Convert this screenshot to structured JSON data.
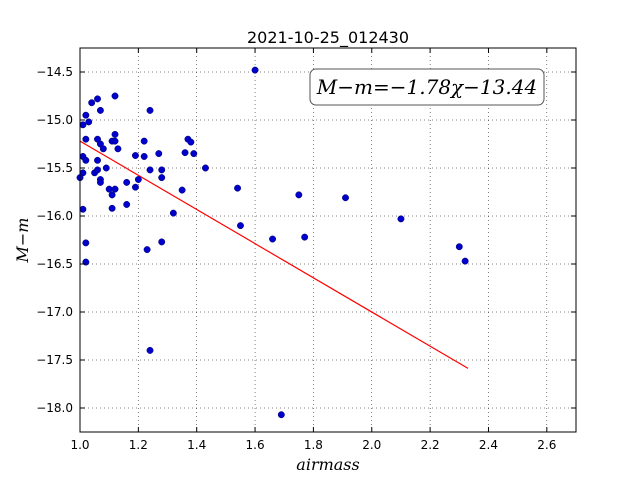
{
  "chart_data": {
    "type": "scatter",
    "title": "2021-10-25_012430",
    "xlabel": "airmass",
    "ylabel": "M−m",
    "xlim": [
      1.0,
      2.7
    ],
    "ylim": [
      -18.25,
      -14.25
    ],
    "x_ticks": [
      1.0,
      1.2,
      1.4,
      1.6,
      1.8,
      2.0,
      2.2,
      2.4,
      2.6
    ],
    "x_tick_labels": [
      "1.0",
      "1.2",
      "1.4",
      "1.6",
      "1.8",
      "2.0",
      "2.2",
      "2.4",
      "2.6"
    ],
    "y_ticks": [
      -14.5,
      -15.0,
      -15.5,
      -16.0,
      -16.5,
      -17.0,
      -17.5,
      -18.0
    ],
    "y_tick_labels": [
      "−14.5",
      "−15.0",
      "−15.5",
      "−16.0",
      "−16.5",
      "−17.0",
      "−17.5",
      "−18.0"
    ],
    "grid": true,
    "annotation": "M−m=−1.78χ−13.44",
    "fit": {
      "slope": -1.78,
      "intercept": -13.44,
      "x_range": [
        1.0,
        2.33
      ],
      "color": "#ff0000"
    },
    "point_color": "#0000cc",
    "points": [
      {
        "x": 1.0,
        "y": -15.6
      },
      {
        "x": 1.01,
        "y": -15.05
      },
      {
        "x": 1.01,
        "y": -15.38
      },
      {
        "x": 1.01,
        "y": -15.55
      },
      {
        "x": 1.01,
        "y": -15.93
      },
      {
        "x": 1.02,
        "y": -16.28
      },
      {
        "x": 1.02,
        "y": -16.48
      },
      {
        "x": 1.02,
        "y": -15.2
      },
      {
        "x": 1.02,
        "y": -15.42
      },
      {
        "x": 1.02,
        "y": -14.95
      },
      {
        "x": 1.03,
        "y": -15.02
      },
      {
        "x": 1.04,
        "y": -14.82
      },
      {
        "x": 1.05,
        "y": -15.55
      },
      {
        "x": 1.06,
        "y": -14.78
      },
      {
        "x": 1.06,
        "y": -15.2
      },
      {
        "x": 1.06,
        "y": -15.42
      },
      {
        "x": 1.06,
        "y": -15.52
      },
      {
        "x": 1.07,
        "y": -15.62
      },
      {
        "x": 1.07,
        "y": -15.65
      },
      {
        "x": 1.07,
        "y": -14.9
      },
      {
        "x": 1.07,
        "y": -15.25
      },
      {
        "x": 1.08,
        "y": -15.3
      },
      {
        "x": 1.09,
        "y": -15.5
      },
      {
        "x": 1.1,
        "y": -15.72
      },
      {
        "x": 1.11,
        "y": -15.78
      },
      {
        "x": 1.11,
        "y": -15.22
      },
      {
        "x": 1.11,
        "y": -15.92
      },
      {
        "x": 1.12,
        "y": -14.75
      },
      {
        "x": 1.12,
        "y": -15.15
      },
      {
        "x": 1.12,
        "y": -15.22
      },
      {
        "x": 1.12,
        "y": -15.72
      },
      {
        "x": 1.13,
        "y": -15.3
      },
      {
        "x": 1.16,
        "y": -15.88
      },
      {
        "x": 1.16,
        "y": -15.65
      },
      {
        "x": 1.19,
        "y": -15.37
      },
      {
        "x": 1.19,
        "y": -15.7
      },
      {
        "x": 1.2,
        "y": -15.62
      },
      {
        "x": 1.22,
        "y": -15.22
      },
      {
        "x": 1.22,
        "y": -15.38
      },
      {
        "x": 1.23,
        "y": -16.35
      },
      {
        "x": 1.24,
        "y": -14.9
      },
      {
        "x": 1.24,
        "y": -15.52
      },
      {
        "x": 1.24,
        "y": -17.4
      },
      {
        "x": 1.27,
        "y": -15.35
      },
      {
        "x": 1.28,
        "y": -15.52
      },
      {
        "x": 1.28,
        "y": -15.6
      },
      {
        "x": 1.28,
        "y": -16.27
      },
      {
        "x": 1.32,
        "y": -15.97
      },
      {
        "x": 1.35,
        "y": -15.73
      },
      {
        "x": 1.36,
        "y": -15.34
      },
      {
        "x": 1.37,
        "y": -15.2
      },
      {
        "x": 1.38,
        "y": -15.23
      },
      {
        "x": 1.39,
        "y": -15.35
      },
      {
        "x": 1.43,
        "y": -15.5
      },
      {
        "x": 1.54,
        "y": -15.71
      },
      {
        "x": 1.55,
        "y": -16.1
      },
      {
        "x": 1.6,
        "y": -14.48
      },
      {
        "x": 1.66,
        "y": -16.24
      },
      {
        "x": 1.69,
        "y": -18.07
      },
      {
        "x": 1.75,
        "y": -15.78
      },
      {
        "x": 1.77,
        "y": -16.22
      },
      {
        "x": 1.91,
        "y": -15.81
      },
      {
        "x": 2.1,
        "y": -16.03
      },
      {
        "x": 2.3,
        "y": -16.32
      },
      {
        "x": 2.32,
        "y": -16.47
      }
    ]
  }
}
